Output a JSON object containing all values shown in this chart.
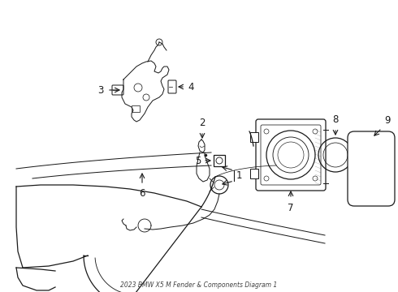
{
  "title": "2023 BMW X5 M Fender & Components Diagram 1",
  "bg_color": "#ffffff",
  "line_color": "#1a1a1a",
  "lw": 0.9
}
